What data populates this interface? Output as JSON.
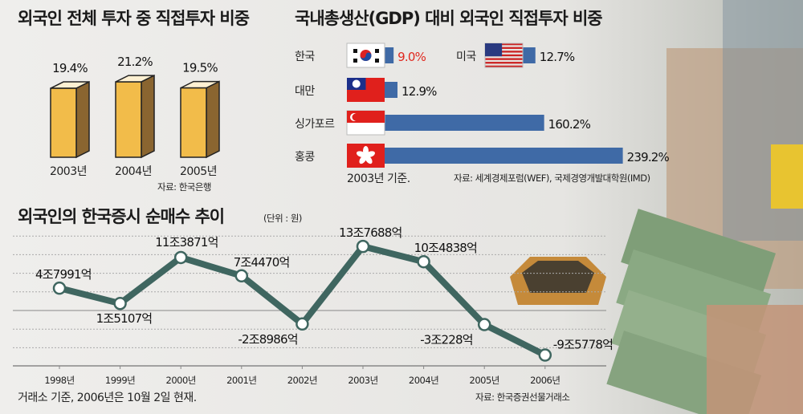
{
  "chart_data": [
    {
      "type": "bar",
      "title": "외국인 전체 투자 중 직접투자 비중",
      "categories": [
        "2003년",
        "2004년",
        "2005년"
      ],
      "values": [
        19.4,
        21.2,
        19.5
      ],
      "value_labels": [
        "19.4%",
        "21.2%",
        "19.5%"
      ],
      "source": "자료: 한국은행",
      "colors": {
        "front": "#f2bc4a",
        "side": "#8a6530",
        "top": "#fdf0d2"
      }
    },
    {
      "type": "bar",
      "orientation": "horizontal",
      "title": "국내총생산(GDP) 대비 외국인 직접투자 비중",
      "categories": [
        "한국",
        "미국",
        "대만",
        "싱가포르",
        "홍콩"
      ],
      "flags": [
        "korea-flag",
        "usa-flag",
        "taiwan-flag",
        "singapore-flag",
        "hongkong-flag"
      ],
      "values": [
        9.0,
        12.7,
        12.9,
        160.2,
        239.2
      ],
      "value_labels": [
        "9.0%",
        "12.7%",
        "12.9%",
        "160.2%",
        "239.2%"
      ],
      "highlight": {
        "category": "한국",
        "color": "#e0281e"
      },
      "bar_color": "#3f6aa6",
      "note": "2003년 기준.",
      "source": "자료: 세계경제포럼(WEF), 국제경영개발대학원(IMD)"
    },
    {
      "type": "line",
      "title": "외국인의 한국증시 순매수 추이",
      "unit": "(단위 : 원)",
      "categories": [
        "1998년",
        "1999년",
        "2000년",
        "2001년",
        "2002년",
        "2003년",
        "2004년",
        "2005년",
        "2006년"
      ],
      "values_eok": [
        47991,
        15107,
        113871,
        74470,
        -28986,
        137688,
        104838,
        -30228,
        -95778
      ],
      "value_labels": [
        "4조7991억",
        "1조5107억",
        "11조3871억",
        "7조4470억",
        "-2조8986억",
        "13조7688억",
        "10조4838억",
        "-3조228억",
        "-9조5778억"
      ],
      "line_color": "#3f6660",
      "grid": true,
      "note": "거래소 기준, 2006년은 10월 2일 현재.",
      "source": "자료: 한국증권선물거래소"
    }
  ]
}
